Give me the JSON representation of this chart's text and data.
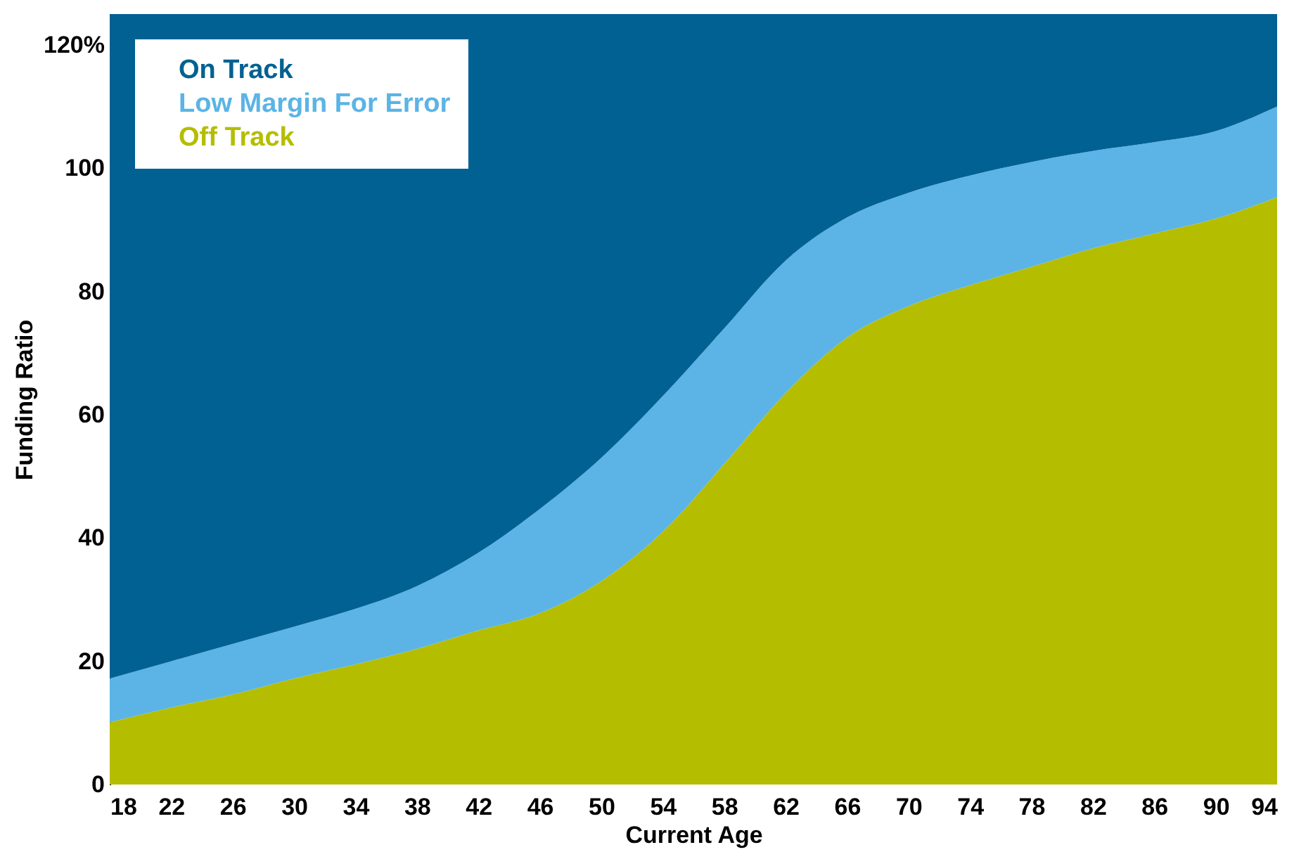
{
  "chart_data": {
    "type": "area",
    "stacked": true,
    "xlabel": "Current Age",
    "ylabel": "Funding Ratio",
    "x": [
      18,
      22,
      26,
      30,
      34,
      38,
      42,
      46,
      50,
      54,
      58,
      62,
      66,
      70,
      74,
      78,
      82,
      86,
      90,
      94
    ],
    "series": [
      {
        "name": "Off Track",
        "color": "#b5bd00",
        "values": [
          10.1,
          12.5,
          14.6,
          17.2,
          19.5,
          22,
          25,
          27.8,
          33,
          41,
          52,
          63.5,
          72.5,
          77.6,
          81,
          84,
          87,
          89.4,
          91.8,
          95.3
        ]
      },
      {
        "name": "Low Margin For Error",
        "color": "#5bb4e5",
        "values": [
          7.1,
          7.5,
          8.2,
          8.4,
          9.0,
          10.2,
          12.6,
          16.9,
          20,
          22,
          22,
          21.5,
          19.5,
          18.4,
          17.8,
          17,
          15.8,
          14.8,
          14.2,
          14.7
        ]
      },
      {
        "name": "On Track",
        "color": "#006192",
        "values": [
          107.8,
          105,
          102.2,
          99.4,
          96.5,
          92.8,
          87.4,
          80.3,
          72,
          62,
          51,
          40,
          33,
          29,
          26.2,
          24,
          22.2,
          20.8,
          19,
          15
        ]
      }
    ],
    "xlim": [
      18,
      94
    ],
    "xticks": [
      18,
      22,
      26,
      30,
      34,
      38,
      42,
      46,
      50,
      54,
      58,
      62,
      66,
      70,
      74,
      78,
      82,
      86,
      90,
      94
    ],
    "ylim": [
      0,
      125
    ],
    "yticks": [
      0,
      20,
      40,
      60,
      80,
      100,
      {
        "value": 120,
        "label": "120%"
      }
    ],
    "grid": false,
    "legend": "top left"
  }
}
